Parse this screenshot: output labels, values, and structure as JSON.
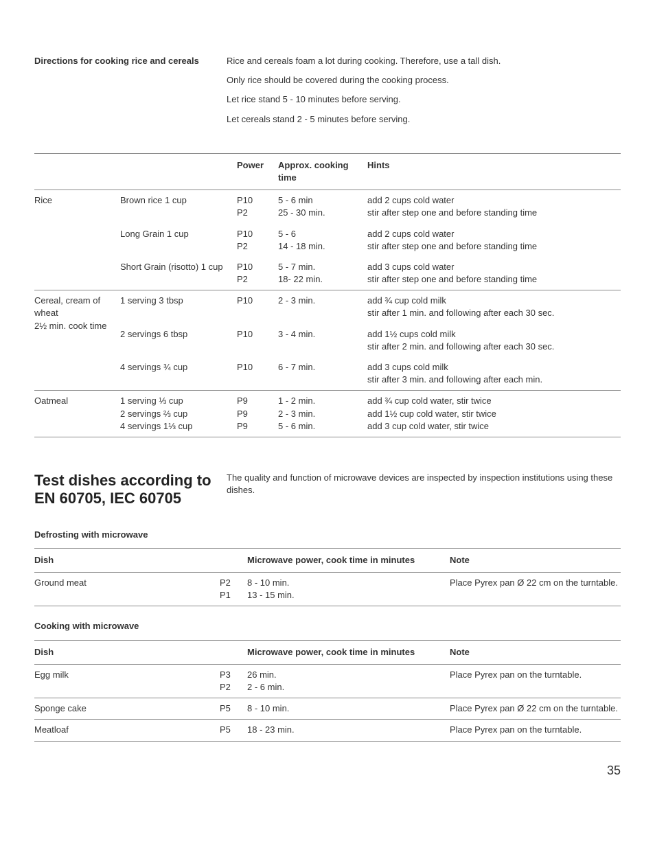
{
  "directions": {
    "title": "Directions for cooking rice and cereals",
    "lines": [
      "Rice and cereals foam a lot during cooking. Therefore, use a tall dish.",
      "Only rice should be covered during the cooking process.",
      "Let rice stand 5 - 10 minutes before serving.",
      "Let cereals stand 2 - 5 minutes before serving."
    ]
  },
  "table1": {
    "h_power": "Power",
    "h_time": "Approx. cooking time",
    "h_hints": "Hints",
    "rows": [
      {
        "cat": "Rice",
        "item": "Brown rice 1 cup",
        "power": "P10\nP2",
        "time": "5 - 6 min\n25 - 30 min.",
        "hint": "add 2 cups cold water\nstir after step one and before standing time",
        "top": true
      },
      {
        "cat": "",
        "item": "Long Grain 1 cup",
        "power": "P10\nP2",
        "time": "5 - 6\n14 - 18 min.",
        "hint": "add 2 cups cold water\nstir after step one and before standing time"
      },
      {
        "cat": "",
        "item": "Short Grain (risotto) 1 cup",
        "power": "P10\nP2",
        "time": "5 - 7 min.\n18- 22 min.",
        "hint": "add 3 cups cold water\nstir after step one and before standing time"
      },
      {
        "cat": "Cereal, cream of wheat\n2½ min. cook time",
        "item": "1 serving 3 tbsp",
        "power": "P10",
        "time": "2 - 3 min.",
        "hint": "add ¾ cup cold milk\nstir after 1 min. and following after each 30 sec.",
        "top": true
      },
      {
        "cat": "",
        "item": "2 servings 6 tbsp",
        "power": "P10",
        "time": "3 - 4 min.",
        "hint": "add 1½ cups cold milk\nstir after 2 min. and following after each 30 sec."
      },
      {
        "cat": "",
        "item": "4 servings ¾ cup",
        "power": "P10",
        "time": "6 - 7 min.",
        "hint": "add 3 cups cold milk\nstir after 3 min. and following after each min."
      },
      {
        "cat": "Oatmeal",
        "item": "1 serving ⅓ cup\n2 servings ⅔ cup\n4 servings 1⅓ cup",
        "power": "P9\nP9\nP9",
        "time": "1 - 2 min.\n2 - 3 min.\n5 - 6 min.",
        "hint": "add ¾ cup cold water, stir twice\nadd 1½ cup cold water, stir twice\nadd 3 cup cold water, stir twice",
        "top": true,
        "bot": true
      }
    ]
  },
  "test": {
    "heading": "Test dishes according to EN 60705, IEC 60705",
    "intro": "The quality and function of microwave devices are inspected by inspection institutions using these dishes."
  },
  "defrost": {
    "title": "Defrosting with microwave",
    "h_dish": "Dish",
    "h_mp": "Microwave power,\ncook time in minutes",
    "h_note": "Note",
    "rows": [
      {
        "dish": "Ground meat",
        "p": "P2\nP1",
        "t": "8 - 10 min.\n13 - 15 min.",
        "note": "Place Pyrex pan Ø 22 cm on the turntable.",
        "bot": true
      }
    ]
  },
  "cook": {
    "title": "Cooking with microwave",
    "h_dish": "Dish",
    "h_mp": "Microwave power,\ncook time in minutes",
    "h_note": "Note",
    "rows": [
      {
        "dish": "Egg milk",
        "p": "P3\nP2",
        "t": "26 min.\n2 - 6 min.",
        "note": "Place Pyrex pan on the turntable."
      },
      {
        "dish": "Sponge cake",
        "p": "P5",
        "t": "8 - 10 min.",
        "note": "Place Pyrex pan Ø 22 cm on the turntable.",
        "top": true
      },
      {
        "dish": "Meatloaf",
        "p": "P5",
        "t": "18 - 23 min.",
        "note": "Place Pyrex pan on the turntable.",
        "top": true,
        "bot": true
      }
    ]
  },
  "page": "35"
}
